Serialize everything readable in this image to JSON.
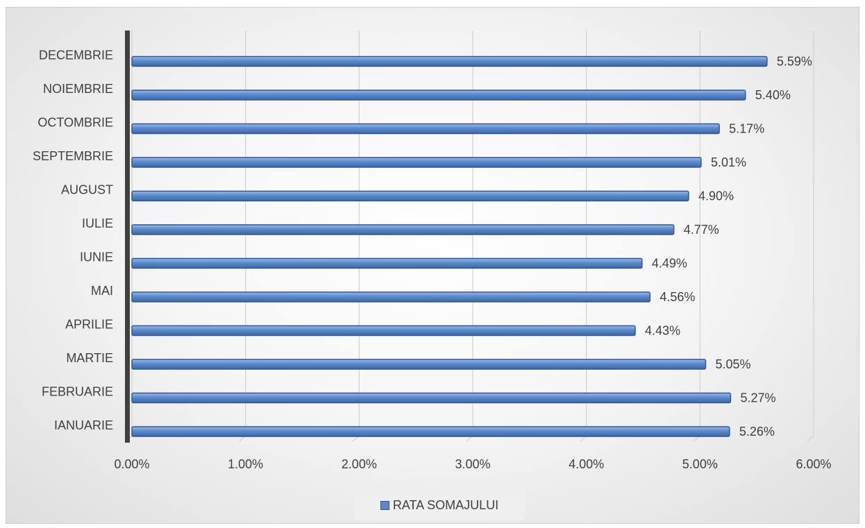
{
  "chart_data": {
    "type": "bar",
    "orientation": "horizontal",
    "categories": [
      "IANUARIE",
      "FEBRUARIE",
      "MARTIE",
      "APRILIE",
      "MAI",
      "IUNIE",
      "IULIE",
      "AUGUST",
      "SEPTEMBRIE",
      "OCTOMBRIE",
      "NOIEMBRIE",
      "DECEMBRIE"
    ],
    "series": [
      {
        "name": "RATA SOMAJULUI",
        "values": [
          5.26,
          5.27,
          5.05,
          4.43,
          4.56,
          4.49,
          4.77,
          4.9,
          5.01,
          5.17,
          5.4,
          5.59
        ],
        "labels": [
          "5.26%",
          "5.27%",
          "5.05%",
          "4.43%",
          "4.56%",
          "4.49%",
          "4.77%",
          "4.90%",
          "5.01%",
          "5.17%",
          "5.40%",
          "5.59%"
        ]
      }
    ],
    "xlim": [
      0,
      6
    ],
    "x_ticks": [
      "0.00%",
      "1.00%",
      "2.00%",
      "3.00%",
      "4.00%",
      "5.00%",
      "6.00%"
    ],
    "grid": true,
    "legend_position": "bottom",
    "colors": {
      "bar_fill": "#5b89c9",
      "bar_edge": "#2f5597",
      "grid": "#d0d0d0",
      "axis_wall": "#404040"
    }
  }
}
